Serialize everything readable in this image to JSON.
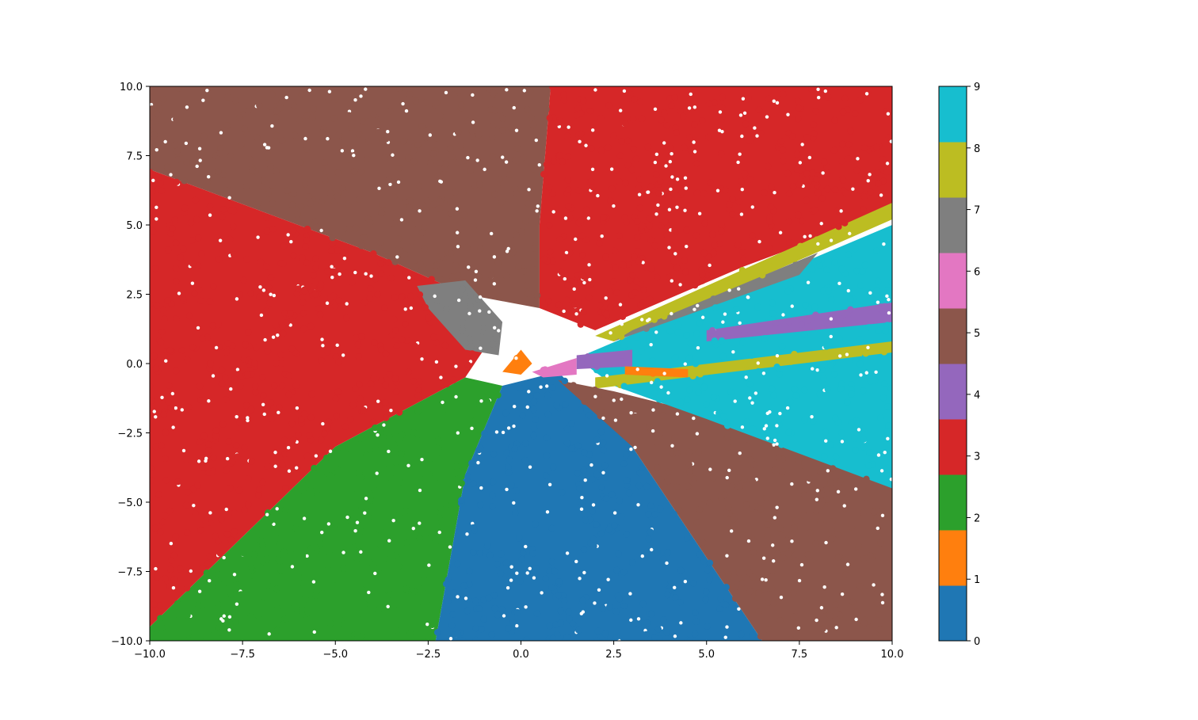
{
  "chart_data": {
    "type": "scatter",
    "title": "",
    "xlabel": "",
    "ylabel": "",
    "xlim": [
      -10,
      10
    ],
    "ylim": [
      -10,
      10
    ],
    "grid": false,
    "x_ticks": [
      -10.0,
      -7.5,
      -5.0,
      -2.5,
      0.0,
      2.5,
      5.0,
      7.5,
      10.0
    ],
    "x_tick_labels": [
      "−10.0",
      "−7.5",
      "−5.0",
      "−2.5",
      "0.0",
      "2.5",
      "5.0",
      "7.5",
      "10.0"
    ],
    "y_ticks": [
      -10.0,
      -7.5,
      -5.0,
      -2.5,
      0.0,
      2.5,
      5.0,
      7.5,
      10.0
    ],
    "y_tick_labels": [
      "−10.0",
      "−7.5",
      "−5.0",
      "−2.5",
      "0.0",
      "2.5",
      "5.0",
      "7.5",
      "10.0"
    ],
    "colorbar": {
      "min": 0,
      "max": 9,
      "ticks": [
        0,
        1,
        2,
        3,
        4,
        5,
        6,
        7,
        8,
        9
      ],
      "tick_labels": [
        "0",
        "1",
        "2",
        "3",
        "4",
        "5",
        "6",
        "7",
        "8",
        "9"
      ],
      "colors": [
        "#1f77b4",
        "#ff7f0e",
        "#2ca02c",
        "#d62728",
        "#9467bd",
        "#8c564b",
        "#e377c2",
        "#7f7f7f",
        "#bcbd22",
        "#17becf"
      ]
    },
    "class_regions": [
      {
        "class": 5,
        "points": [
          [
            -10,
            10
          ],
          [
            0.8,
            10
          ],
          [
            0.5,
            5
          ],
          [
            0.5,
            2
          ],
          [
            -1.5,
            2.5
          ],
          [
            -4,
            4
          ],
          [
            -8,
            6
          ],
          [
            -10,
            7
          ]
        ]
      },
      {
        "class": 3,
        "points": [
          [
            0.8,
            10
          ],
          [
            10,
            10
          ],
          [
            10,
            5.5
          ],
          [
            6,
            3.5
          ],
          [
            2,
            1.2
          ],
          [
            0.5,
            2
          ],
          [
            0.5,
            5
          ]
        ]
      },
      {
        "class": 3,
        "points": [
          [
            -10,
            7
          ],
          [
            -8,
            6
          ],
          [
            -4,
            4
          ],
          [
            -1.5,
            2.5
          ],
          [
            -1,
            0.5
          ],
          [
            -1.5,
            -0.5
          ],
          [
            -5,
            -3
          ],
          [
            -10,
            -9.5
          ]
        ]
      },
      {
        "class": 7,
        "points": [
          [
            -2.8,
            2.8
          ],
          [
            -1.5,
            3
          ],
          [
            -0.5,
            1.5
          ],
          [
            -0.6,
            0.3
          ],
          [
            -1.5,
            0.5
          ],
          [
            -2.5,
            2
          ]
        ]
      },
      {
        "class": 2,
        "points": [
          [
            -10,
            -9.5
          ],
          [
            -5,
            -3
          ],
          [
            -1.5,
            -0.5
          ],
          [
            -0.5,
            -0.8
          ],
          [
            -1.5,
            -4
          ],
          [
            -2.3,
            -10
          ],
          [
            -10,
            -10
          ]
        ]
      },
      {
        "class": 0,
        "points": [
          [
            -0.5,
            -0.8
          ],
          [
            1,
            -0.3
          ],
          [
            3,
            -3
          ],
          [
            6.5,
            -10
          ],
          [
            -2.3,
            -10
          ],
          [
            -1.5,
            -4
          ]
        ]
      },
      {
        "class": 5,
        "points": [
          [
            1,
            -0.6
          ],
          [
            2.5,
            -1
          ],
          [
            10,
            -3.5
          ],
          [
            10,
            -10
          ],
          [
            6.5,
            -10
          ],
          [
            3,
            -3
          ]
        ]
      },
      {
        "class": 9,
        "points": [
          [
            1.5,
            0.2
          ],
          [
            10,
            5
          ],
          [
            10,
            -4.5
          ],
          [
            5,
            -2
          ],
          [
            2.5,
            -0.8
          ]
        ]
      },
      {
        "class": 8,
        "points": [
          [
            2,
            1
          ],
          [
            10,
            5.8
          ],
          [
            10,
            5.2
          ],
          [
            2.5,
            0.8
          ]
        ]
      },
      {
        "class": 7,
        "points": [
          [
            3,
            1.2
          ],
          [
            8,
            4
          ],
          [
            7.5,
            3.2
          ],
          [
            2.5,
            0.8
          ]
        ]
      },
      {
        "class": 4,
        "points": [
          [
            5,
            1.2
          ],
          [
            10,
            2.2
          ],
          [
            10,
            1.5
          ],
          [
            5,
            0.8
          ]
        ]
      },
      {
        "class": 8,
        "points": [
          [
            2,
            -0.5
          ],
          [
            10,
            0.8
          ],
          [
            10,
            0.4
          ],
          [
            2,
            -0.9
          ]
        ]
      },
      {
        "class": 1,
        "points": [
          [
            -0.5,
            -0.3
          ],
          [
            0,
            0.5
          ],
          [
            0.3,
            0
          ],
          [
            0,
            -0.4
          ]
        ]
      },
      {
        "class": 6,
        "points": [
          [
            0.3,
            -0.3
          ],
          [
            1.5,
            0.2
          ],
          [
            1.5,
            -0.4
          ],
          [
            0.6,
            -0.5
          ]
        ]
      },
      {
        "class": 4,
        "points": [
          [
            1.5,
            0.3
          ],
          [
            3,
            0.5
          ],
          [
            3,
            -0.1
          ],
          [
            1.5,
            -0.2
          ]
        ]
      },
      {
        "class": 1,
        "points": [
          [
            2.8,
            -0.1
          ],
          [
            4.5,
            -0.2
          ],
          [
            4.5,
            -0.5
          ],
          [
            2.8,
            -0.4
          ]
        ]
      }
    ]
  }
}
